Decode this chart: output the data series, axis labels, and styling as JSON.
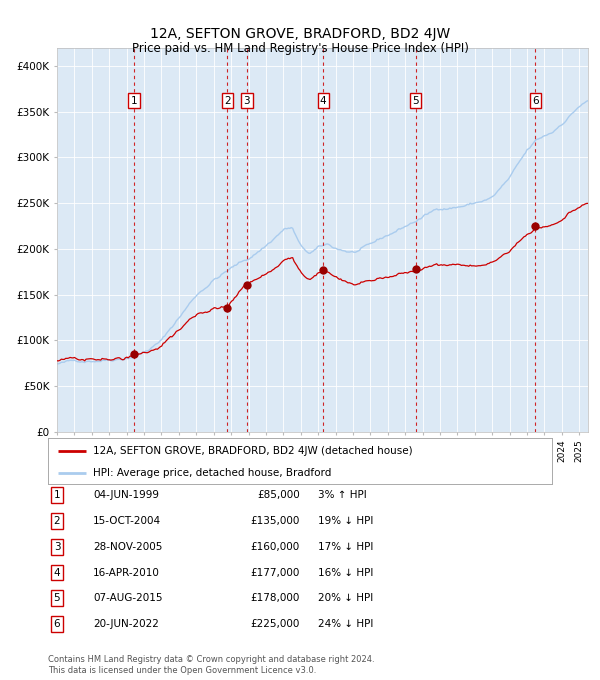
{
  "title": "12A, SEFTON GROVE, BRADFORD, BD2 4JW",
  "subtitle": "Price paid vs. HM Land Registry's House Price Index (HPI)",
  "background_color": "#dce9f5",
  "hpi_color": "#aaccee",
  "price_color": "#cc0000",
  "sale_marker_color": "#990000",
  "dashed_color": "#cc0000",
  "ylabel_ticks": [
    "£0",
    "£50K",
    "£100K",
    "£150K",
    "£200K",
    "£250K",
    "£300K",
    "£350K",
    "£400K"
  ],
  "ylabel_values": [
    0,
    50000,
    100000,
    150000,
    200000,
    250000,
    300000,
    350000,
    400000
  ],
  "xlim_start": 1995.0,
  "xlim_end": 2025.5,
  "ylim_min": 0,
  "ylim_max": 420000,
  "legend_label_red": "12A, SEFTON GROVE, BRADFORD, BD2 4JW (detached house)",
  "legend_label_blue": "HPI: Average price, detached house, Bradford",
  "footnote": "Contains HM Land Registry data © Crown copyright and database right 2024.\nThis data is licensed under the Open Government Licence v3.0.",
  "sales": [
    {
      "num": 1,
      "date_dec": 1999.42,
      "price": 85000
    },
    {
      "num": 2,
      "date_dec": 2004.79,
      "price": 135000
    },
    {
      "num": 3,
      "date_dec": 2005.91,
      "price": 160000
    },
    {
      "num": 4,
      "date_dec": 2010.29,
      "price": 177000
    },
    {
      "num": 5,
      "date_dec": 2015.6,
      "price": 178000
    },
    {
      "num": 6,
      "date_dec": 2022.47,
      "price": 225000
    }
  ],
  "table_rows": [
    {
      "num": 1,
      "date": "04-JUN-1999",
      "price": "£85,000",
      "pct": "3% ↑ HPI"
    },
    {
      "num": 2,
      "date": "15-OCT-2004",
      "price": "£135,000",
      "pct": "19% ↓ HPI"
    },
    {
      "num": 3,
      "date": "28-NOV-2005",
      "price": "£160,000",
      "pct": "17% ↓ HPI"
    },
    {
      "num": 4,
      "date": "16-APR-2010",
      "price": "£177,000",
      "pct": "16% ↓ HPI"
    },
    {
      "num": 5,
      "date": "07-AUG-2015",
      "price": "£178,000",
      "pct": "20% ↓ HPI"
    },
    {
      "num": 6,
      "date": "20-JUN-2022",
      "price": "£225,000",
      "pct": "24% ↓ HPI"
    }
  ]
}
